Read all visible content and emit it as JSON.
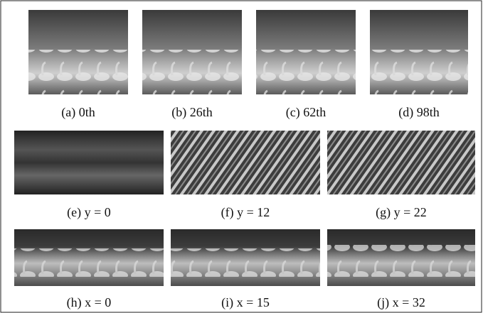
{
  "figure": {
    "panels": [
      {
        "label": "(a) 0th"
      },
      {
        "label": "(b) 26th"
      },
      {
        "label": "(c) 62th"
      },
      {
        "label": "(d) 98th"
      },
      {
        "label": "(e) y = 0"
      },
      {
        "label": "(f) y = 12"
      },
      {
        "label": "(g) y = 22"
      },
      {
        "label": "(h) x = 0"
      },
      {
        "label": "(i) x = 15"
      },
      {
        "label": "(j) x = 32"
      }
    ]
  }
}
